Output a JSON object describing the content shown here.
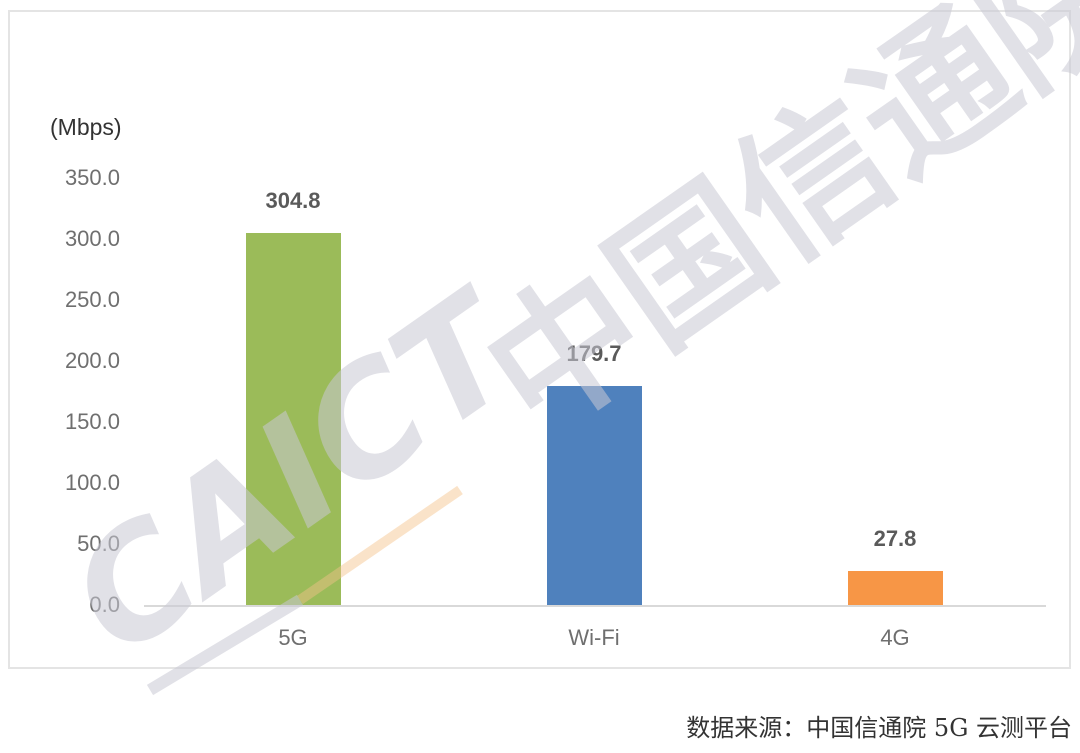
{
  "chart_data": {
    "type": "bar",
    "title": "",
    "xlabel": "",
    "ylabel": "(Mbps)",
    "ylim": [
      0,
      350
    ],
    "yticks": [
      "0.0",
      "50.0",
      "100.0",
      "150.0",
      "200.0",
      "250.0",
      "300.0",
      "350.0"
    ],
    "grid": false,
    "legend": null,
    "categories": [
      "5G",
      "Wi-Fi",
      "4G"
    ],
    "values": [
      304.8,
      179.7,
      27.8
    ],
    "value_labels": [
      "304.8",
      "179.7",
      "27.8"
    ],
    "colors": [
      "#9bbb59",
      "#4f81bd",
      "#f79646"
    ]
  },
  "watermark": {
    "text_cn": "中国信通院",
    "text_en": "CAICT"
  },
  "footer": {
    "source": "数据来源：中国信通院 5G 云测平台"
  }
}
